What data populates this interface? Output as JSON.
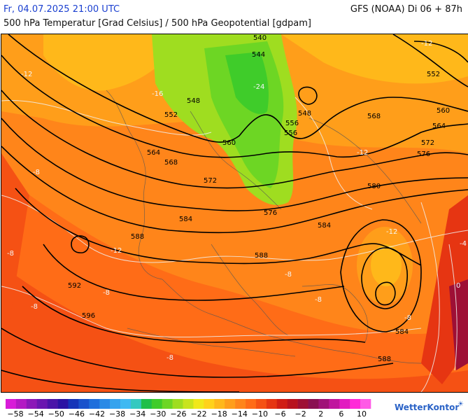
{
  "header": {
    "datetime": "Fr, 04.07.2025 21:00 UTC",
    "model": "GFS (NOAA) Di 06 + 87h",
    "subtitle": "500 hPa Temperatur [Grad Celsius] / 500 hPa Geopotential [gdpam]"
  },
  "contour_labels": [
    "540",
    "544",
    "548",
    "548",
    "552",
    "552",
    "556",
    "560",
    "564",
    "568",
    "572",
    "576",
    "556",
    "560",
    "564",
    "568",
    "572",
    "576",
    "580",
    "584",
    "584",
    "588",
    "588",
    "592",
    "596",
    "584",
    "588",
    "564",
    "552"
  ],
  "temp_labels": [
    "-12",
    "-16",
    "-24",
    "-12",
    "-12",
    "-8",
    "-8",
    "-8",
    "-12",
    "-8",
    "-8",
    "-8",
    "-4",
    "0",
    "-8",
    "-8",
    "-12"
  ],
  "legend": {
    "ticks": [
      "−58",
      "−54",
      "−50",
      "−46",
      "−42",
      "−38",
      "−34",
      "−30",
      "−26",
      "−22",
      "−18",
      "−14",
      "−10",
      "−6",
      "−2",
      "2",
      "6",
      "10"
    ],
    "colors": [
      "#d81bd8",
      "#b318c4",
      "#8c17b8",
      "#6a16b0",
      "#4a14a8",
      "#2b12a3",
      "#1634b8",
      "#1a52cc",
      "#1f6fdc",
      "#2a8ae6",
      "#35a3ee",
      "#3fb9f2",
      "#34c9c0",
      "#1fbf4a",
      "#3fcc2a",
      "#6dd624",
      "#9fdd20",
      "#c8e41d",
      "#f0e81a",
      "#ffd21a",
      "#ffb81a",
      "#ff9e1a",
      "#ff851a",
      "#ff6c17",
      "#f55114",
      "#e63512",
      "#d01d14",
      "#b8121e",
      "#9e0f35",
      "#8a0f52",
      "#a01278",
      "#c0169e",
      "#e21ac0",
      "#ff2ad8",
      "#ff5ae6"
    ],
    "brand": "WetterKontor",
    "brand_icon": "cloud-sun-icon"
  }
}
